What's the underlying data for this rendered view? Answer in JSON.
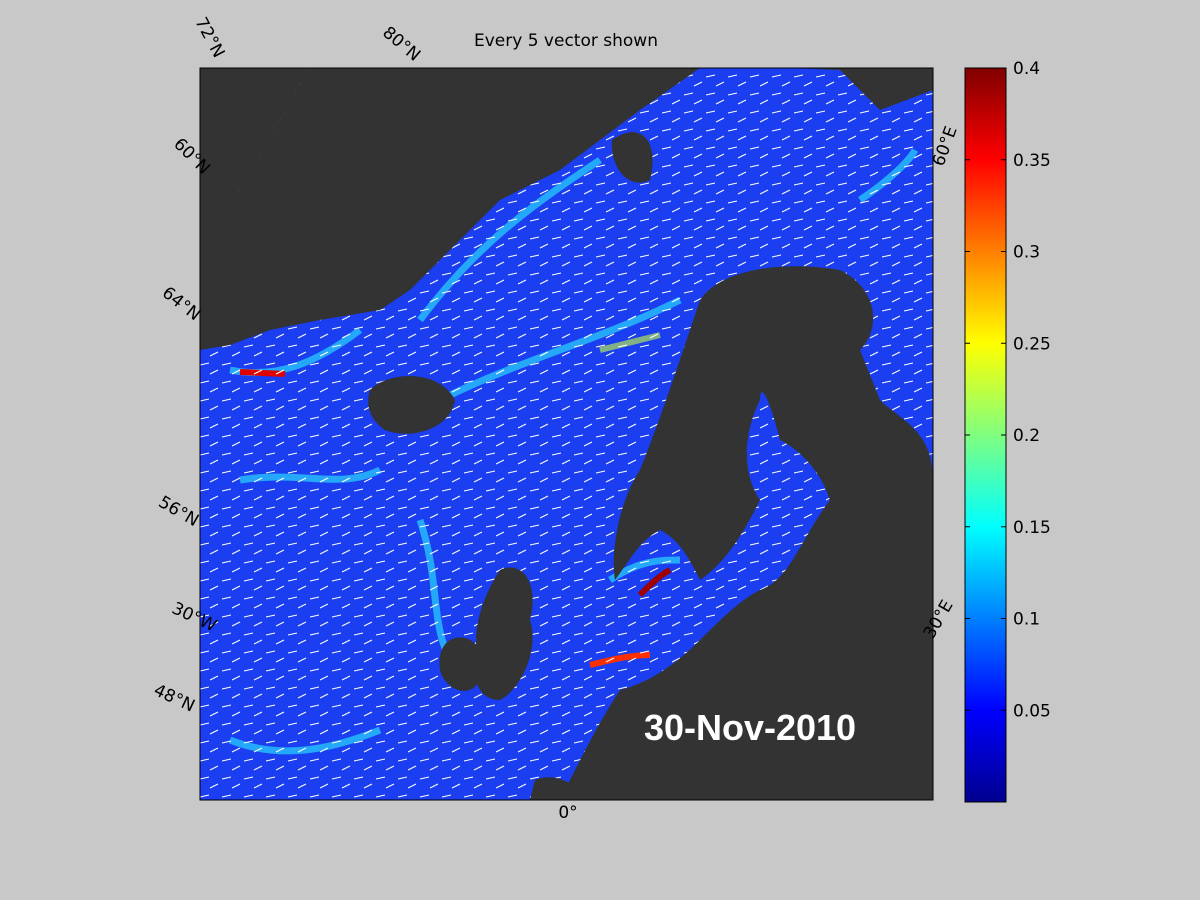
{
  "title": "Every 5 vector shown",
  "date_label": "30-Nov-2010",
  "grid_labels": [
    "72°N",
    "80°N",
    "60°N",
    "64°N",
    "56°N",
    "30°W",
    "48°N",
    "60°E",
    "30°E",
    "0°"
  ],
  "colorbar": {
    "lim": [
      0,
      0.4
    ],
    "ticks": [
      0.05,
      0.1,
      0.15,
      0.2,
      0.25,
      0.3,
      0.35,
      0.4
    ]
  }
}
